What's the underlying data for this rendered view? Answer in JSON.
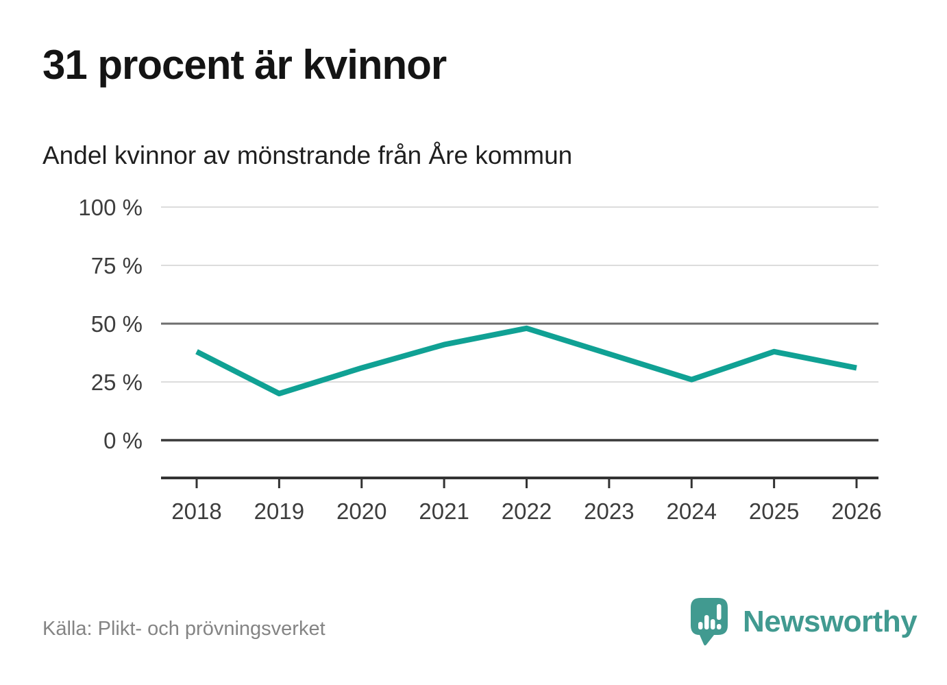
{
  "header": {
    "title": "31 procent är kvinnor"
  },
  "chart_data": {
    "type": "line",
    "title": "Andel kvinnor av mönstrande från Åre kommun",
    "categories": [
      "2018",
      "2019",
      "2020",
      "2021",
      "2022",
      "2023",
      "2024",
      "2025",
      "2026"
    ],
    "series": [
      {
        "name": "Andel kvinnor av mönstrande",
        "values": [
          38,
          20,
          31,
          41,
          48,
          37,
          26,
          38,
          31
        ]
      }
    ],
    "unit": "%",
    "xlabel": "",
    "ylabel": "",
    "ylim": [
      0,
      100
    ],
    "yticks": [
      {
        "value": 0,
        "label": "0 %",
        "emphasis": "strong"
      },
      {
        "value": 25,
        "label": "25 %",
        "emphasis": "light"
      },
      {
        "value": 50,
        "label": "50 %",
        "emphasis": "medium"
      },
      {
        "value": 75,
        "label": "75 %",
        "emphasis": "light"
      },
      {
        "value": 100,
        "label": "100 %",
        "emphasis": "light"
      }
    ],
    "grid": "horizontal",
    "legend": "none",
    "colors": {
      "line": "#10a194",
      "grid_light": "#dcdcdc",
      "grid_medium": "#6e6e6e",
      "grid_strong": "#3a3a3a",
      "axis": "#333333",
      "tick_text": "#3d3d3d"
    }
  },
  "footer": {
    "source": "Källa: Plikt- och prövningsverket",
    "brand": "Newsworthy",
    "brand_color": "#419a90",
    "icons": [
      "speech-bubble-bar-chart-icon"
    ]
  }
}
